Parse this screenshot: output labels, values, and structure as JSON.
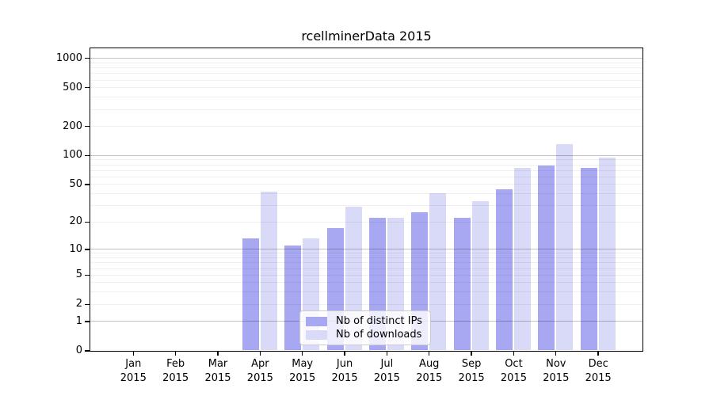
{
  "title": "rcellminerData 2015",
  "legend": {
    "items": [
      {
        "label": "Nb of distinct IPs",
        "color": "#a7a7f2"
      },
      {
        "label": "Nb of downloads",
        "color": "#d9d9f8"
      }
    ]
  },
  "chart_data": {
    "type": "bar",
    "title": "rcellminerData 2015",
    "year": "2015",
    "categories": [
      "Jan",
      "Feb",
      "Mar",
      "Apr",
      "May",
      "Jun",
      "Jul",
      "Aug",
      "Sep",
      "Oct",
      "Nov",
      "Dec"
    ],
    "series": [
      {
        "name": "Nb of distinct IPs",
        "color": "#a7a7f2",
        "values": [
          0,
          0,
          0,
          13,
          11,
          17,
          22,
          25,
          22,
          44,
          78,
          74
        ]
      },
      {
        "name": "Nb of downloads",
        "color": "#d9d9f8",
        "values": [
          0,
          0,
          0,
          42,
          13,
          29,
          22,
          40,
          33,
          74,
          130,
          95
        ]
      }
    ],
    "xlabel": "",
    "ylabel": "",
    "y_axis": {
      "scale": "log1p",
      "ticks": [
        0,
        1,
        2,
        5,
        10,
        20,
        50,
        100,
        200,
        500,
        1000
      ],
      "major_gridlines": [
        1,
        10,
        100,
        1000
      ],
      "minor_gridlines": [
        2,
        3,
        4,
        5,
        6,
        7,
        8,
        9,
        20,
        30,
        40,
        50,
        60,
        70,
        80,
        90,
        200,
        300,
        400,
        500,
        600,
        700,
        800,
        900
      ],
      "ylim": [
        0,
        1000
      ]
    },
    "legend_position": "lower center",
    "grid": true
  }
}
